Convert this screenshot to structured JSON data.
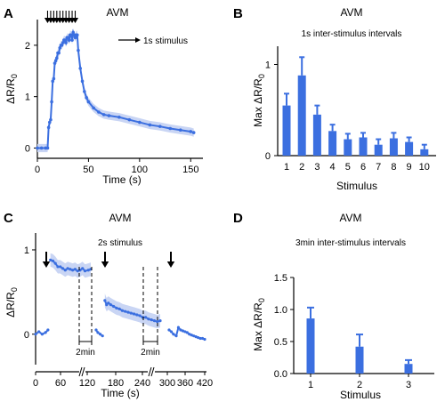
{
  "chart_data": [
    {
      "panel": "A",
      "type": "line",
      "title": "AVM",
      "xlabel": "Time (s)",
      "ylabel": "ΔR/R0",
      "xlim": [
        0,
        155
      ],
      "ylim": [
        -0.2,
        2.5
      ],
      "xticks": [
        "0",
        "50",
        "100",
        "150"
      ],
      "yticks": [
        "0",
        "1",
        "2"
      ],
      "legend": "1s stimulus",
      "stimulus_times": [
        10,
        13,
        16,
        19,
        22,
        25,
        28,
        31,
        34,
        37
      ],
      "series": [
        {
          "x": [
            0,
            4,
            8,
            10,
            11,
            12,
            13,
            14,
            15,
            16,
            17,
            18,
            19,
            20,
            21,
            22,
            23,
            24,
            25,
            26,
            27,
            28,
            29,
            30,
            31,
            32,
            33,
            34,
            35,
            36,
            37,
            38,
            39,
            40,
            42,
            44,
            46,
            48,
            50,
            55,
            60,
            65,
            70,
            80,
            90,
            100,
            110,
            120,
            130,
            140,
            150,
            153
          ],
          "values": [
            0,
            0,
            0,
            0,
            0.4,
            0.5,
            0.55,
            0.9,
            1.3,
            1.35,
            1.65,
            1.7,
            1.75,
            1.85,
            1.85,
            1.95,
            2.0,
            2.0,
            2.05,
            2.1,
            2.1,
            2.05,
            2.15,
            2.15,
            2.1,
            2.2,
            2.2,
            2.1,
            2.25,
            2.2,
            2.15,
            2.2,
            2.2,
            1.9,
            1.55,
            1.3,
            1.1,
            0.98,
            0.9,
            0.78,
            0.7,
            0.65,
            0.63,
            0.6,
            0.55,
            0.5,
            0.45,
            0.42,
            0.38,
            0.35,
            0.32,
            0.3
          ]
        }
      ]
    },
    {
      "panel": "B",
      "type": "bar",
      "title": "AVM",
      "subtitle": "1s inter-stimulus intervals",
      "xlabel": "Stimulus",
      "ylabel": "Max ΔR/R0",
      "ylim": [
        0,
        1.2
      ],
      "yticks": [
        "0",
        "1"
      ],
      "categories": [
        "1",
        "2",
        "3",
        "4",
        "5",
        "6",
        "7",
        "8",
        "9",
        "10"
      ],
      "values": [
        0.55,
        0.88,
        0.45,
        0.27,
        0.18,
        0.2,
        0.12,
        0.19,
        0.15,
        0.07
      ],
      "errors": [
        0.13,
        0.2,
        0.1,
        0.07,
        0.06,
        0.05,
        0.06,
        0.06,
        0.05,
        0.05
      ]
    },
    {
      "panel": "C",
      "type": "line",
      "title": "AVM",
      "subtitle": "2s stimulus",
      "xlabel": "Time (s)",
      "ylabel": "ΔR/R0",
      "ylim": [
        -0.15,
        1.2
      ],
      "xticks": [
        "0",
        "60",
        "120",
        "180",
        "240",
        "300",
        "360",
        "420"
      ],
      "yticks": [
        "0",
        "1"
      ],
      "gap_label": "2min",
      "segments": [
        {
          "x": [
            0,
            4,
            8,
            12,
            15,
            18,
            21,
            24,
            27,
            30,
            33,
            36,
            39,
            42,
            45,
            48,
            51,
            54,
            57,
            60,
            64,
            67
          ],
          "values": [
            0,
            0.03,
            0,
            0.02,
            0.05,
            0.88,
            0.87,
            0.84,
            0.8,
            0.8,
            0.78,
            0.76,
            0.78,
            0.77,
            0.76,
            0.77,
            0.75,
            0.76,
            0.78,
            0.75,
            0.76,
            0.77
          ]
        },
        {
          "x": [
            103,
            106,
            110,
            114,
            118,
            121,
            124,
            128,
            133,
            138,
            143,
            148,
            153,
            158,
            163,
            168,
            173,
            178,
            183,
            188,
            193,
            198,
            203,
            208,
            213
          ],
          "values": [
            0.05,
            0.02,
            0,
            -0.02,
            0.4,
            0.35,
            0.37,
            0.35,
            0.33,
            0.31,
            0.3,
            0.28,
            0.27,
            0.26,
            0.25,
            0.24,
            0.23,
            0.22,
            0.2,
            0.2,
            0.18,
            0.17,
            0.16,
            0.15,
            0.16
          ]
        },
        {
          "x": [
            253,
            257,
            261,
            266,
            270,
            274,
            278,
            282,
            286,
            290,
            294,
            298,
            302,
            306,
            310,
            314,
            318
          ],
          "values": [
            0.05,
            0.03,
            0,
            -0.02,
            0.08,
            0.05,
            0.04,
            0.03,
            0.02,
            0.0,
            -0.01,
            -0.02,
            -0.03,
            -0.04,
            -0.05,
            -0.05,
            -0.06
          ]
        }
      ],
      "arrows_at": [
        15,
        118,
        270
      ]
    },
    {
      "panel": "D",
      "type": "bar",
      "title": "AVM",
      "subtitle": "3min inter-stimulus intervals",
      "xlabel": "Stimulus",
      "ylabel": "Max ΔR/R0",
      "ylim": [
        0,
        1.5
      ],
      "yticks": [
        "0.0",
        "0.5",
        "1.0",
        "1.5"
      ],
      "categories": [
        "1",
        "2",
        "3"
      ],
      "values": [
        0.86,
        0.42,
        0.15
      ],
      "errors": [
        0.17,
        0.19,
        0.06
      ]
    }
  ]
}
